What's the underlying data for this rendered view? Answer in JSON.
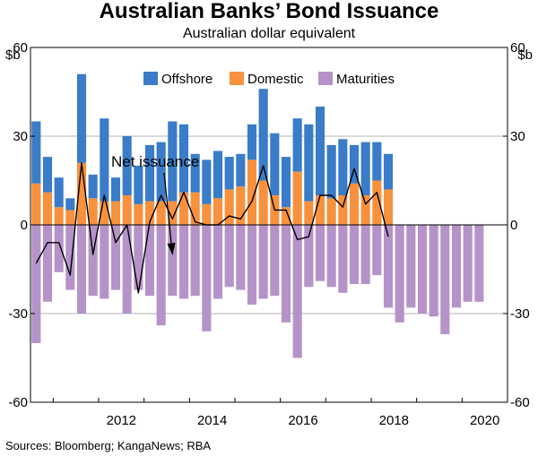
{
  "chart_data": {
    "type": "bar",
    "title": "Australian Banks’ Bond Issuance",
    "subtitle": "Australian dollar equivalent",
    "unit_left": "$b",
    "unit_right": "$b",
    "ylim": [
      -60,
      60
    ],
    "yticks": [
      -60,
      -30,
      0,
      30,
      60
    ],
    "x_range": [
      2010.5,
      2021.0
    ],
    "xticks": [
      {
        "label": "2012",
        "value": 2012.0
      },
      {
        "label": "2014",
        "value": 2014.0
      },
      {
        "label": "2016",
        "value": 2016.0
      },
      {
        "label": "2018",
        "value": 2018.0
      },
      {
        "label": "2020",
        "value": 2020.0
      }
    ],
    "legend": [
      "Offshore",
      "Domestic",
      "Maturities"
    ],
    "colors": {
      "Offshore": "#3a7cc7",
      "Domestic": "#f7913d",
      "Maturities": "#b593c9",
      "Net": "#000000",
      "grid": "#b3b3b3"
    },
    "quarters": [
      2010.625,
      2010.875,
      2011.125,
      2011.375,
      2011.625,
      2011.875,
      2012.125,
      2012.375,
      2012.625,
      2012.875,
      2013.125,
      2013.375,
      2013.625,
      2013.875,
      2014.125,
      2014.375,
      2014.625,
      2014.875,
      2015.125,
      2015.375,
      2015.625,
      2015.875,
      2016.125,
      2016.375,
      2016.625,
      2016.875,
      2017.125,
      2017.375,
      2017.625,
      2017.875,
      2018.125,
      2018.375,
      2018.625,
      2018.875,
      2019.125,
      2019.375,
      2019.625,
      2019.875,
      2020.125,
      2020.375,
      2020.625,
      2020.875
    ],
    "series": [
      {
        "name": "Domestic",
        "values": [
          14,
          11,
          6,
          5,
          21,
          9,
          8,
          8,
          10,
          7,
          8,
          8,
          8,
          11,
          11,
          7,
          9,
          12,
          13,
          22,
          15,
          10,
          6,
          18,
          8,
          10,
          9,
          10,
          14,
          10,
          15,
          12,
          null,
          null,
          null,
          null,
          null,
          null,
          null,
          null,
          null,
          null
        ]
      },
      {
        "name": "Offshore",
        "values": [
          21,
          12,
          10,
          4,
          30,
          8,
          28,
          8,
          20,
          13,
          19,
          20,
          27,
          23,
          13,
          15,
          16,
          11,
          11,
          12,
          31,
          21,
          17,
          18,
          26,
          30,
          18,
          19,
          13,
          18,
          13,
          12,
          null,
          null,
          null,
          null,
          null,
          null,
          null,
          null,
          null,
          null
        ]
      },
      {
        "name": "Maturities",
        "values": [
          -40,
          -26,
          -16,
          -22,
          -30,
          -24,
          -25,
          -22,
          -30,
          -22,
          -24,
          -34,
          -24,
          -25,
          -24,
          -36,
          -25,
          -21,
          -22,
          -27,
          -25,
          -24,
          -33,
          -45,
          -21,
          -19,
          -21,
          -23,
          -20,
          -20,
          -17,
          -28,
          -33,
          -28,
          -30,
          -31,
          -37,
          -28,
          -26,
          -26,
          null,
          null
        ]
      },
      {
        "name": "Net issuance",
        "values": [
          -13,
          -6,
          -6,
          -17,
          21,
          -10,
          10,
          -6,
          0,
          -23,
          1,
          10,
          2,
          11,
          1,
          0,
          0,
          3,
          2,
          8,
          20,
          5,
          5,
          -5,
          -4,
          10,
          10,
          6,
          19,
          7,
          11,
          -4,
          null,
          null,
          null,
          null,
          null,
          null,
          null,
          null,
          null,
          null
        ]
      }
    ],
    "annotation": "Net issuance",
    "source": "Sources: Bloomberg; KangaNews; RBA"
  }
}
